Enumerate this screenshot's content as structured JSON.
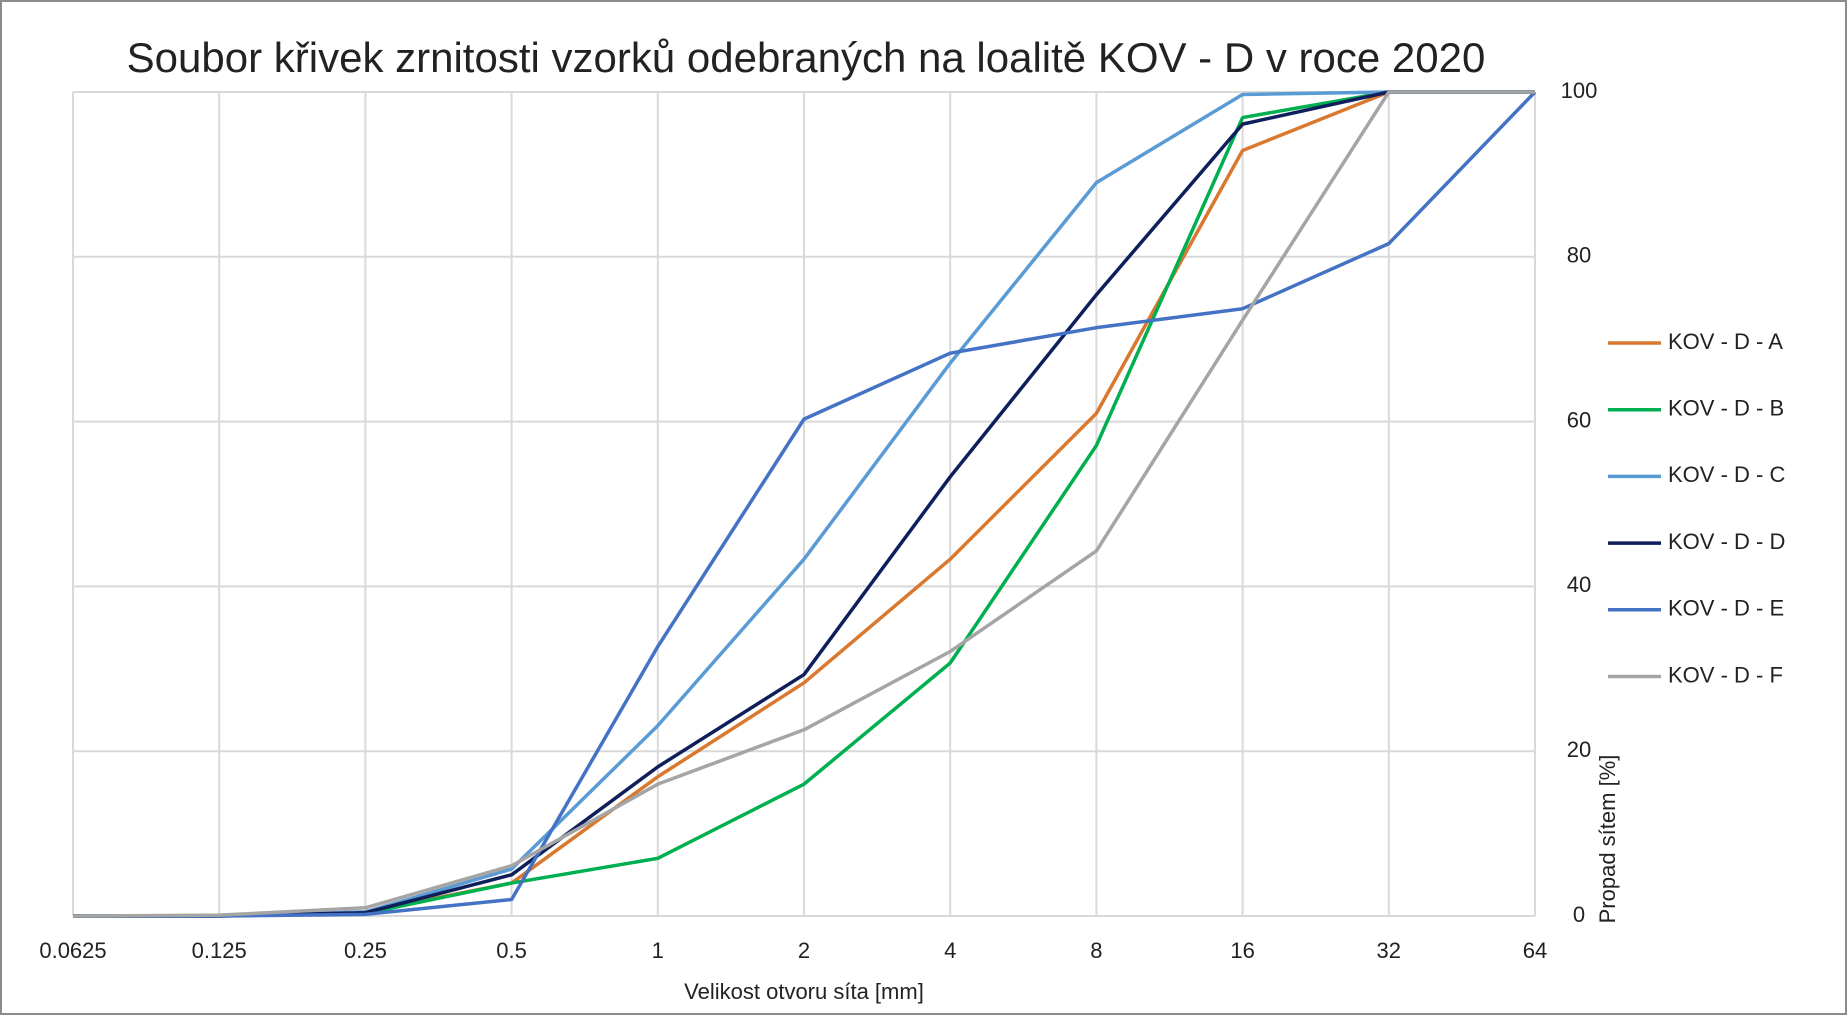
{
  "chart_data": {
    "type": "line",
    "title": "Soubor křivek zrnitosti vzorků odebraných na loalitě KOV - D v roce 2020",
    "x_label": "Velikost otvoru síta [mm]",
    "y_label": "Propad sítem [%]",
    "x": [
      0.0625,
      0.125,
      0.25,
      0.5,
      1,
      2,
      4,
      8,
      16,
      32,
      64
    ],
    "xscale": "log",
    "xlim": [
      0.0625,
      64
    ],
    "xticks": [
      0.0625,
      0.125,
      0.25,
      0.5,
      1,
      2,
      4,
      8,
      16,
      32,
      64
    ],
    "ylim": [
      0,
      100
    ],
    "yticks": [
      0,
      20,
      40,
      60,
      80,
      100
    ],
    "y_axis_side": "right",
    "grid": true,
    "legend": "right",
    "series": [
      {
        "name": "KOV - D - A",
        "color": "#d9782f",
        "values": [
          0,
          0,
          0.5,
          4,
          16.9,
          28.3,
          43.3,
          61,
          92.9,
          100,
          100
        ]
      },
      {
        "name": "KOV - D - B",
        "color": "#00b050",
        "values": [
          0,
          0,
          0.3,
          4,
          7,
          16,
          30.7,
          57.1,
          96.9,
          100,
          100
        ]
      },
      {
        "name": "KOV - D - C",
        "color": "#5b9bd5",
        "values": [
          0,
          0,
          0.5,
          5.7,
          23.1,
          43.3,
          67.1,
          89,
          99.7,
          100,
          100
        ]
      },
      {
        "name": "KOV - D - D",
        "color": "#0e1f5b",
        "values": [
          0,
          0,
          0.4,
          5,
          18.1,
          29.3,
          53.3,
          75.4,
          96.1,
          100,
          100
        ]
      },
      {
        "name": "KOV - D - E",
        "color": "#4472c4",
        "values": [
          0,
          0,
          0.2,
          2,
          32.7,
          60.3,
          68.3,
          71.4,
          73.7,
          81.6,
          100
        ]
      },
      {
        "name": "KOV - D - F",
        "color": "#a5a5a5",
        "values": [
          0,
          0.1,
          1,
          6.1,
          16,
          22.6,
          32.1,
          44.3,
          72.3,
          100,
          100
        ]
      }
    ]
  }
}
